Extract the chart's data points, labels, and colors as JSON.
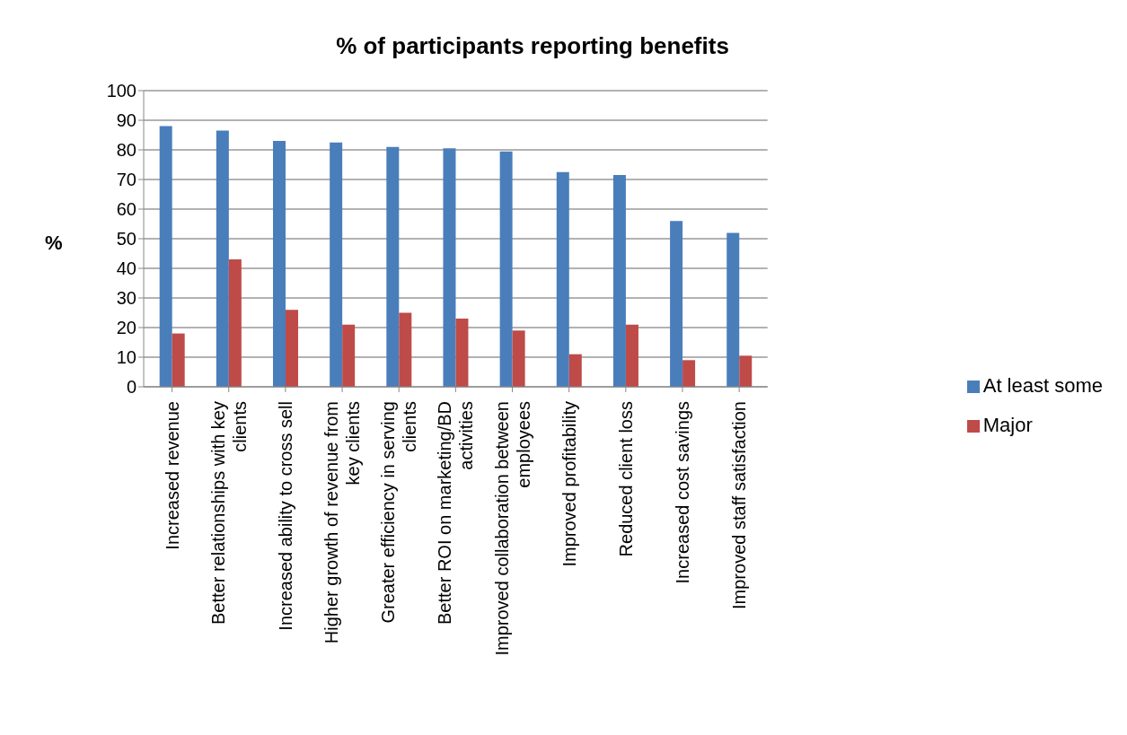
{
  "chart_data": {
    "type": "bar",
    "title": "% of participants reporting benefits",
    "ylabel": "%",
    "categories": [
      "Increased revenue",
      "Better relationships with key clients",
      "Increased ability to cross sell",
      "Higher growth of revenue from key clients",
      "Greater efficiency in serving clients",
      "Better ROI on marketing/BD activities",
      "Improved collaboration between employees",
      "Improved profitability",
      "Reduced client loss",
      "Increased cost savings",
      "Improved staff satisfaction"
    ],
    "series": [
      {
        "name": "At least some",
        "color": "#4a7ebb",
        "values": [
          88,
          86.5,
          83,
          82.5,
          81,
          80.5,
          79.5,
          72.5,
          71.5,
          56,
          52
        ]
      },
      {
        "name": "Major",
        "color": "#be4b48",
        "values": [
          18,
          43,
          26,
          21,
          25,
          23,
          19,
          11,
          21,
          9,
          10.5
        ]
      }
    ],
    "ylim": [
      0,
      100
    ],
    "yticks": [
      0,
      10,
      20,
      30,
      40,
      50,
      60,
      70,
      80,
      90,
      100
    ],
    "grid": "y",
    "legend": "right"
  }
}
